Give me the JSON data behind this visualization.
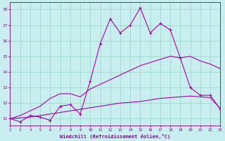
{
  "x": [
    2,
    3,
    4,
    5,
    6,
    7,
    8,
    9,
    10,
    11,
    12,
    13,
    14,
    15,
    16,
    17,
    18,
    19,
    20,
    21,
    22,
    23
  ],
  "line1": [
    11.0,
    10.8,
    11.2,
    11.1,
    10.9,
    11.8,
    11.9,
    11.3,
    13.4,
    15.8,
    17.4,
    16.5,
    17.0,
    18.1,
    16.5,
    17.1,
    16.7,
    14.9,
    13.0,
    12.5,
    12.5,
    11.6
  ],
  "line2": [
    11.0,
    11.2,
    11.5,
    11.8,
    12.3,
    12.6,
    12.6,
    12.4,
    12.9,
    13.2,
    13.5,
    13.8,
    14.1,
    14.4,
    14.6,
    14.8,
    15.0,
    14.9,
    15.0,
    14.7,
    14.5,
    14.2
  ],
  "line3": [
    11.0,
    11.05,
    11.1,
    11.2,
    11.3,
    11.4,
    11.5,
    11.6,
    11.7,
    11.8,
    11.9,
    12.0,
    12.05,
    12.1,
    12.2,
    12.3,
    12.35,
    12.4,
    12.45,
    12.4,
    12.35,
    11.65
  ],
  "line_color": "#aa00aa",
  "bg_color": "#c8eef0",
  "grid_color": "#a0d8cc",
  "xlabel": "Windchill (Refroidissement éolien,°C)",
  "xlim": [
    2,
    23
  ],
  "ylim": [
    10.55,
    18.45
  ],
  "yticks": [
    11,
    12,
    13,
    14,
    15,
    16,
    17,
    18
  ],
  "xticks": [
    2,
    3,
    4,
    5,
    6,
    7,
    8,
    9,
    10,
    11,
    12,
    13,
    14,
    15,
    16,
    17,
    18,
    19,
    20,
    21,
    22,
    23
  ],
  "xlabel_color": "#880099",
  "tick_color": "#880099",
  "marker_color": "#aa00aa"
}
